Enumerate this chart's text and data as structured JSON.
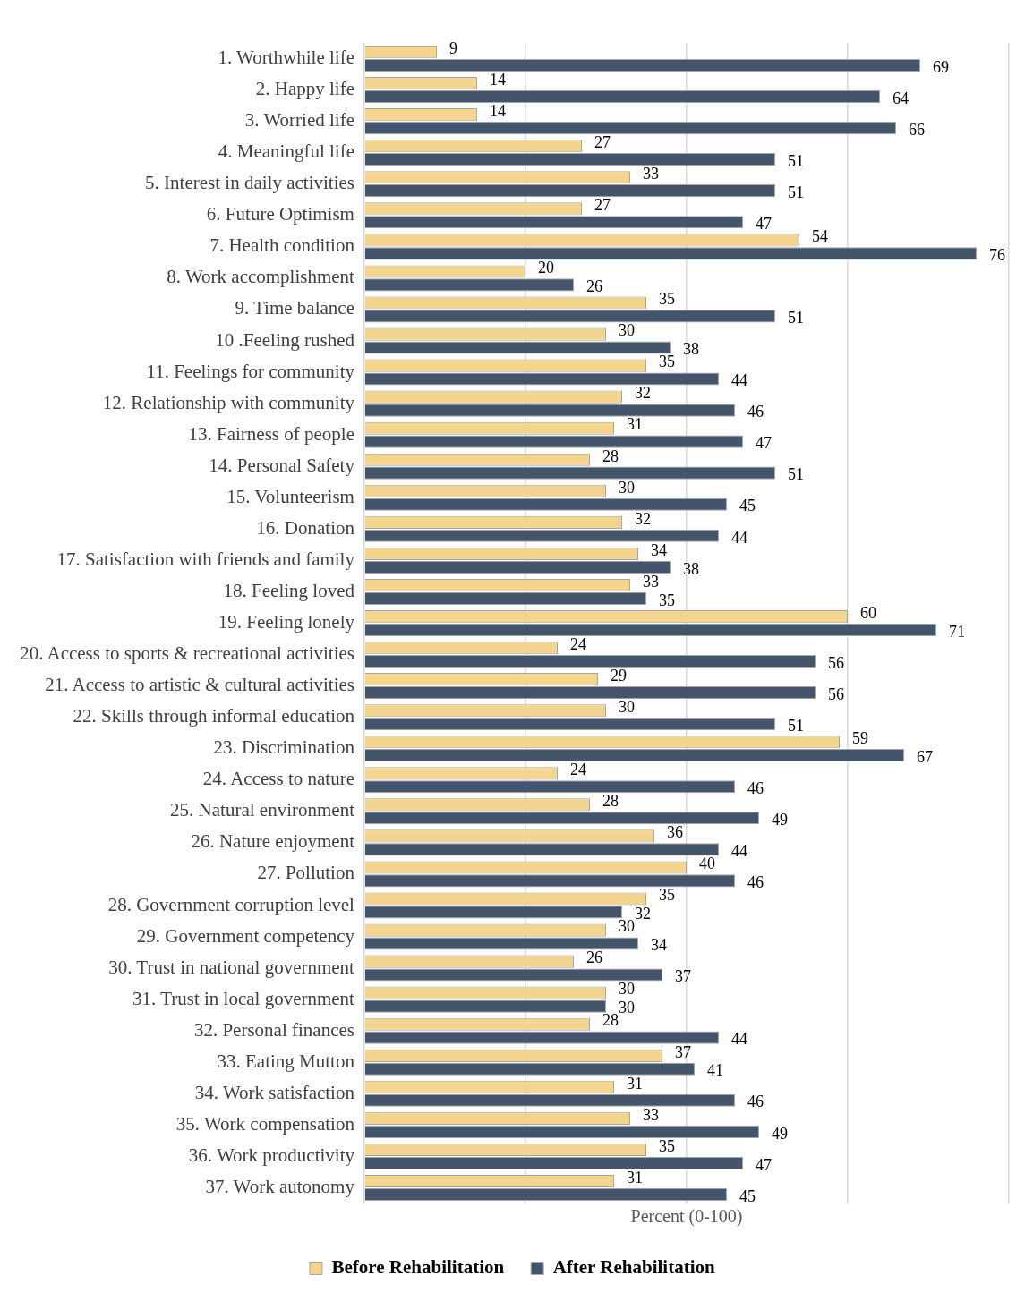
{
  "chart_data": {
    "type": "bar",
    "orientation": "horizontal",
    "xlabel": "Percent (0-100)",
    "categories": [
      "1. Worthwhile life",
      "2. Happy life",
      "3. Worried life",
      "4. Meaningful life",
      "5. Interest in daily activities",
      "6. Future Optimism",
      "7. Health condition",
      "8. Work accomplishment",
      "9. Time balance",
      "10 .Feeling rushed",
      "11. Feelings for community",
      "12. Relationship with community",
      "13. Fairness of people",
      "14. Personal Safety",
      "15. Volunteerism",
      "16. Donation",
      "17. Satisfaction with friends and family",
      "18. Feeling loved",
      "19. Feeling lonely",
      "20. Access to sports & recreational activities",
      "21. Access to artistic & cultural activities",
      "22. Skills through informal education",
      "23. Discrimination",
      "24. Access to nature",
      "25. Natural environment",
      "26. Nature enjoyment",
      "27. Pollution",
      "28. Government corruption level",
      "29. Government competency",
      "30. Trust in national government",
      "31. Trust in local government",
      "32. Personal finances",
      "33. Eating Mutton",
      "34. Work satisfaction",
      "35. Work compensation",
      "36. Work productivity",
      "37. Work autonomy"
    ],
    "series": [
      {
        "name": "Before Rehabilitation",
        "color": "#f3d58f",
        "values": [
          9,
          14,
          14,
          27,
          33,
          27,
          54,
          20,
          35,
          30,
          35,
          32,
          31,
          28,
          30,
          32,
          34,
          33,
          60,
          24,
          29,
          30,
          59,
          24,
          28,
          36,
          40,
          35,
          30,
          26,
          30,
          28,
          37,
          31,
          33,
          35,
          31
        ]
      },
      {
        "name": "After Rehabilitation",
        "color": "#44546a",
        "values": [
          69,
          64,
          66,
          51,
          51,
          47,
          76,
          26,
          51,
          38,
          44,
          46,
          47,
          51,
          45,
          44,
          38,
          35,
          71,
          56,
          56,
          51,
          67,
          46,
          49,
          44,
          46,
          32,
          34,
          37,
          30,
          44,
          41,
          46,
          49,
          47,
          45
        ]
      }
    ],
    "xlim": [
      0,
      80
    ],
    "xticks": [
      {
        "value": 0,
        "label": null
      },
      {
        "value": 20,
        "label": null
      },
      {
        "value": 40,
        "label": null
      },
      {
        "value": 60,
        "label": null
      },
      {
        "value": 80,
        "label": null
      }
    ],
    "tick_labels": "y",
    "grid": "x",
    "legend": "bottom",
    "data_labels": true
  }
}
